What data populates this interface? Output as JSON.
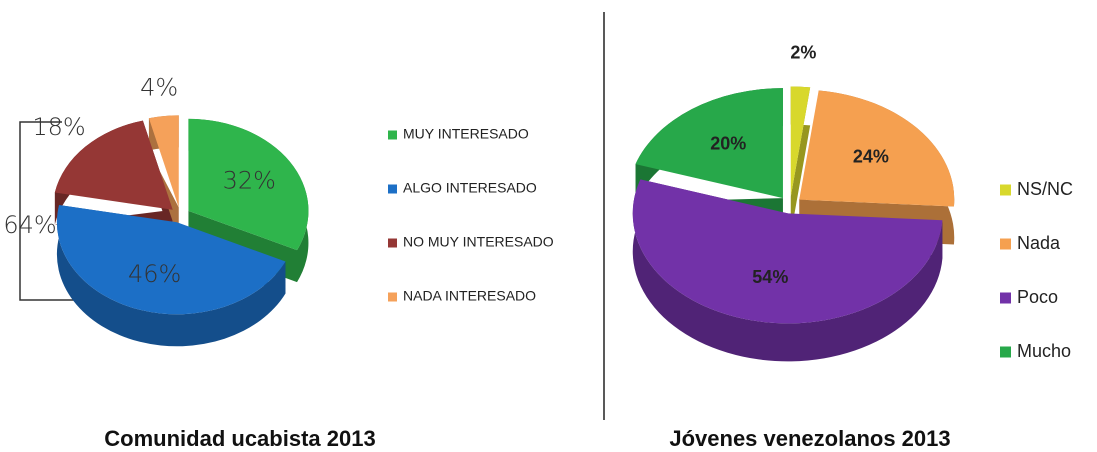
{
  "chart_data": [
    {
      "type": "pie",
      "title": "Comunidad ucabista 2013",
      "categories": [
        "MUY INTERESADO",
        "ALGO INTERESADO",
        "NO MUY INTERESADO",
        "NADA INTERESADO"
      ],
      "values": [
        32,
        46,
        18,
        4
      ],
      "value_labels": [
        "32%",
        "46%",
        "18%",
        "4%"
      ],
      "colors": [
        "#2fb54c",
        "#1c6fc6",
        "#953735",
        "#f5a15a"
      ],
      "annotation": "64%",
      "legend": "right"
    },
    {
      "type": "pie",
      "title": "Jóvenes venezolanos 2013",
      "categories": [
        "NS/NC",
        "Nada",
        "Poco",
        "Mucho"
      ],
      "values": [
        2,
        24,
        54,
        20
      ],
      "value_labels": [
        "2%",
        "24%",
        "54%",
        "20%"
      ],
      "colors": [
        "#d8d82c",
        "#f5a050",
        "#7232a8",
        "#27a84a"
      ],
      "legend": "right"
    }
  ]
}
